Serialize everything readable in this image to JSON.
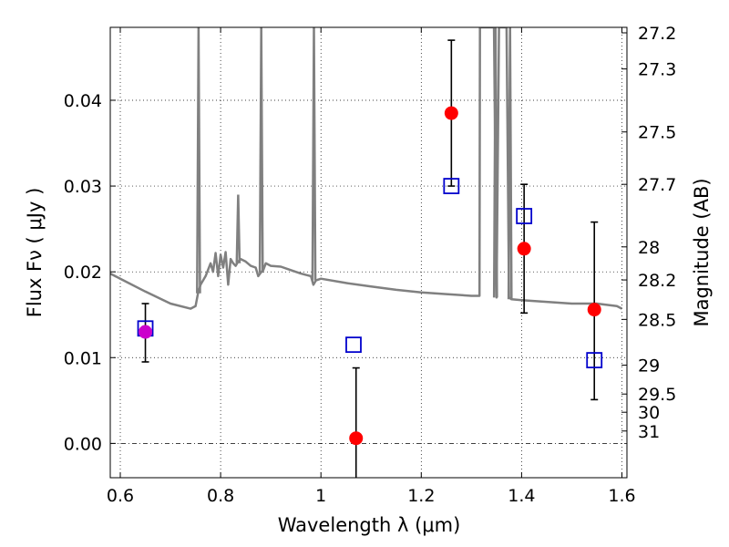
{
  "chart_data": {
    "type": "scatter",
    "xlabel": "Wavelength  λ (μm)",
    "ylabel_left": "Flux  Fν  ( μJy )",
    "ylabel_right": "Magnitude (AB)",
    "xlim": [
      0.58,
      1.61
    ],
    "ylim": [
      -0.004,
      0.0485
    ],
    "x_ticks": [
      0.6,
      0.8,
      1.0,
      1.2,
      1.4,
      1.6
    ],
    "x_tick_labels": [
      "0.6",
      "0.8",
      "1",
      "1.2",
      "1.4",
      "1.6"
    ],
    "y_ticks": [
      0.0,
      0.01,
      0.02,
      0.03,
      0.04
    ],
    "y_tick_labels": [
      "0.00",
      "0.01",
      "0.02",
      "0.03",
      "0.04"
    ],
    "mag_ticks": [
      27.2,
      27.3,
      27.5,
      27.7,
      28,
      28.2,
      28.5,
      29,
      29.5,
      30,
      31
    ],
    "mag_tick_labels": [
      "27.2",
      "27.3",
      "27.5",
      "27.7",
      "28",
      "28.2",
      "28.5",
      "29",
      "29.5",
      "30",
      "31"
    ],
    "grid": true,
    "zero_line": true,
    "colors": {
      "observed": "#ff0000",
      "model_box": "#0000cc",
      "errorbar": "#000000",
      "spectrum": "#808080",
      "overlap": "#cc00cc"
    },
    "observed": {
      "x": [
        0.65,
        1.07,
        1.26,
        1.405,
        1.545
      ],
      "y": [
        0.013,
        0.0006,
        0.0385,
        0.0227,
        0.0156
      ],
      "yerr_low": [
        0.0035,
        0.009,
        0.0085,
        0.0075,
        0.0105
      ],
      "yerr_high": [
        0.0033,
        0.0082,
        0.0085,
        0.0075,
        0.0102
      ]
    },
    "model_photometry": {
      "x": [
        0.65,
        1.065,
        1.26,
        1.405,
        1.545
      ],
      "y": [
        0.0134,
        0.0115,
        0.03,
        0.0265,
        0.0097
      ]
    },
    "spectrum": {
      "x": [
        0.58,
        0.6,
        0.65,
        0.7,
        0.74,
        0.75,
        0.755,
        0.76,
        0.77,
        0.78,
        0.785,
        0.79,
        0.795,
        0.8,
        0.805,
        0.81,
        0.815,
        0.82,
        0.825,
        0.83,
        0.835,
        0.84,
        0.85,
        0.86,
        0.87,
        0.875,
        0.88,
        0.885,
        0.89,
        0.9,
        0.92,
        0.94,
        0.96,
        0.98,
        0.985,
        0.99,
        1.0,
        1.05,
        1.1,
        1.15,
        1.2,
        1.25,
        1.3,
        1.316,
        1.317,
        1.32,
        1.345,
        1.35,
        1.355,
        1.37,
        1.375,
        1.38,
        1.4,
        1.45,
        1.5,
        1.55,
        1.59,
        1.6
      ],
      "y": [
        0.0198,
        0.0192,
        0.0177,
        0.0163,
        0.0157,
        0.016,
        0.0175,
        0.0185,
        0.0195,
        0.021,
        0.02,
        0.0222,
        0.0195,
        0.022,
        0.0205,
        0.0223,
        0.0185,
        0.0215,
        0.021,
        0.0207,
        0.0212,
        0.0215,
        0.0212,
        0.0207,
        0.0205,
        0.0195,
        0.0199,
        0.0202,
        0.021,
        0.0207,
        0.0206,
        0.0202,
        0.0198,
        0.0195,
        0.0185,
        0.019,
        0.0192,
        0.0187,
        0.0183,
        0.0179,
        0.0176,
        0.0174,
        0.0172,
        0.0172,
        0.0485,
        0.0485,
        0.0485,
        0.017,
        0.0485,
        0.0485,
        0.017,
        0.0168,
        0.0167,
        0.0165,
        0.0163,
        0.0163,
        0.016,
        0.0157
      ]
    },
    "spikes": [
      {
        "x": 0.756,
        "y_top": 0.0485,
        "y_base": 0.0175
      },
      {
        "x": 0.835,
        "y_top": 0.029,
        "y_base": 0.021
      },
      {
        "x": 0.881,
        "y_top": 0.0485,
        "y_base": 0.0199
      },
      {
        "x": 0.986,
        "y_top": 0.0485,
        "y_base": 0.019
      },
      {
        "x": 1.348,
        "y_top": 0.0485,
        "y_base": 0.017
      },
      {
        "x": 1.377,
        "y_top": 0.0485,
        "y_base": 0.0168
      }
    ]
  }
}
